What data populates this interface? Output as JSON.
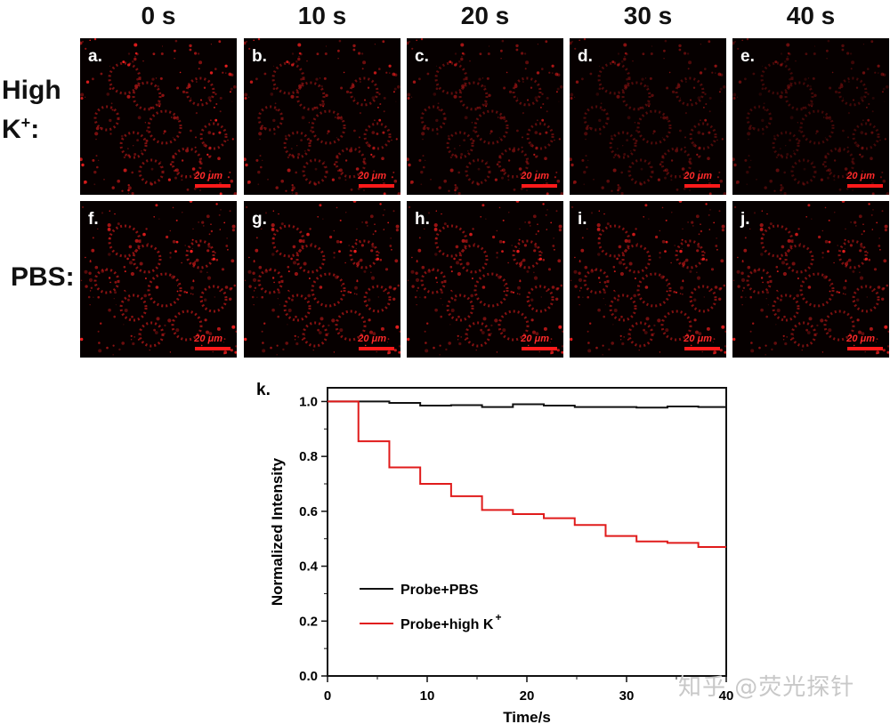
{
  "columns": [
    "0 s",
    "10 s",
    "20 s",
    "30 s",
    "40 s"
  ],
  "rows": [
    {
      "label_main": "High",
      "label_k": "K",
      "label_sup": "+",
      "label_colon": ":"
    },
    {
      "label": "PBS:"
    }
  ],
  "panels": [
    [
      "a.",
      "b.",
      "c.",
      "d.",
      "e."
    ],
    [
      "f.",
      "g.",
      "h.",
      "i.",
      "j."
    ]
  ],
  "scale_bar_label": "20 μm",
  "colors": {
    "red": "#e01b1b",
    "black": "#111111",
    "fluorescence": "#ff2020"
  },
  "chart_data": {
    "type": "line",
    "panel_label": "k.",
    "xlabel": "Time/s",
    "ylabel": "Normalized Intensity",
    "xlim": [
      0,
      40
    ],
    "ylim": [
      0.0,
      1.05
    ],
    "x_ticks": [
      0,
      10,
      20,
      30,
      40
    ],
    "y_ticks": [
      "0.0",
      "0.2",
      "0.4",
      "0.6",
      "0.8",
      "1.0"
    ],
    "step": true,
    "legend_position": "lower-left",
    "series": [
      {
        "name": "Probe+PBS",
        "color": "#111111",
        "x": [
          0,
          3.1,
          6.2,
          9.3,
          12.4,
          15.5,
          18.6,
          21.7,
          24.8,
          27.9,
          31.0,
          34.1,
          37.2,
          40
        ],
        "y": [
          1.0,
          1.0,
          0.995,
          0.985,
          0.987,
          0.98,
          0.99,
          0.985,
          0.98,
          0.98,
          0.978,
          0.982,
          0.98,
          0.98
        ]
      },
      {
        "name": "Probe+high K",
        "name_sup": "+",
        "color": "#e01b1b",
        "x": [
          0,
          3.1,
          6.2,
          9.3,
          12.4,
          15.5,
          18.6,
          21.7,
          24.8,
          27.9,
          31.0,
          34.1,
          37.2,
          40
        ],
        "y": [
          1.0,
          0.855,
          0.76,
          0.7,
          0.655,
          0.605,
          0.59,
          0.575,
          0.55,
          0.51,
          0.49,
          0.485,
          0.47,
          0.47
        ]
      }
    ]
  },
  "watermark": "知乎 @荧光探针"
}
